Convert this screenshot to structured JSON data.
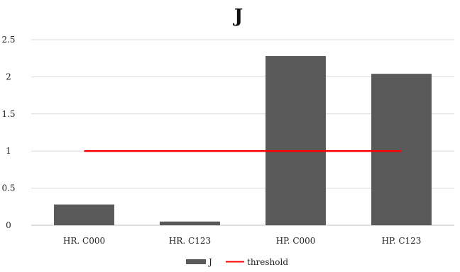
{
  "chart_data": {
    "type": "bar",
    "title": "J",
    "categories": [
      "HR. C000",
      "HR. C123",
      "HP. C000",
      "HP. C123"
    ],
    "series": [
      {
        "name": "J",
        "type": "bar",
        "values": [
          0.28,
          0.05,
          2.28,
          2.04
        ],
        "color": "#595959"
      },
      {
        "name": "threshold",
        "type": "line",
        "values": [
          1,
          1,
          1,
          1
        ],
        "color": "#ff0000"
      }
    ],
    "yticks": [
      "0",
      "0.5",
      "1",
      "1.5",
      "2",
      "2.5"
    ],
    "ylim": [
      0,
      2.5
    ],
    "grid": true,
    "legend": "bottom"
  }
}
